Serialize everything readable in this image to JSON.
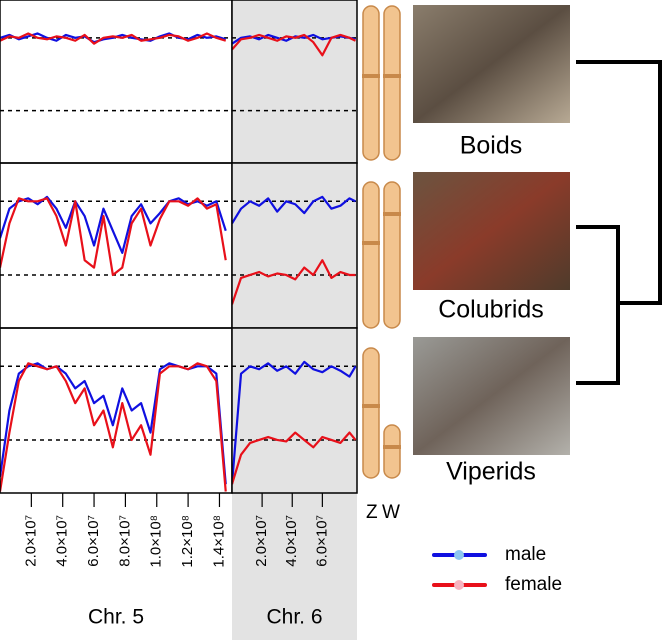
{
  "chart_data": [
    {
      "type": "line",
      "x": [
        0,
        6000000,
        12000000,
        18000000,
        24000000,
        30000000,
        36000000,
        42000000,
        48000000,
        54000000,
        60000000,
        66000000,
        72000000,
        78000000,
        84000000,
        90000000,
        96000000,
        102000000,
        108000000,
        114000000,
        120000000,
        126000000,
        132000000,
        138000000,
        144000000
      ],
      "xlim": [
        0,
        148000000
      ],
      "ylim": [
        0.14,
        1.26
      ],
      "hlines": [
        0.5,
        1
      ],
      "series": [
        {
          "name": "male",
          "color": "#1010e0",
          "point_color": "#8ec8f0",
          "values": [
            1.0,
            1.02,
            0.99,
            1.01,
            1.03,
            1.0,
            0.98,
            1.02,
            1.0,
            1.01,
            0.97,
            0.99,
            1.0,
            1.02,
            1.0,
            0.99,
            0.98,
            1.01,
            1.03,
            1.0,
            0.99,
            1.02,
            1.0,
            1.01,
            0.99
          ]
        },
        {
          "name": "female",
          "color": "#e8101a",
          "point_color": "#f7b3c0",
          "values": [
            0.98,
            1.01,
            1.0,
            1.03,
            1.0,
            0.99,
            1.01,
            1.0,
            0.98,
            1.02,
            0.96,
            1.0,
            1.01,
            1.0,
            1.02,
            0.98,
            0.99,
            1.0,
            1.02,
            1.01,
            0.98,
            1.0,
            1.03,
            1.0,
            0.98
          ]
        }
      ]
    },
    {
      "type": "line",
      "x": [
        0,
        6000000,
        12000000,
        18000000,
        24000000,
        30000000,
        36000000,
        42000000,
        48000000,
        54000000,
        60000000,
        66000000,
        72000000,
        78000000,
        82000000
      ],
      "xlim": [
        0,
        83000000
      ],
      "ylim": [
        0.14,
        1.26
      ],
      "hlines": [
        0.5,
        1
      ],
      "background": "#e3e3e3",
      "series": [
        {
          "name": "male",
          "color": "#1010e0",
          "values": [
            0.96,
            1.0,
            1.01,
            0.99,
            1.02,
            1.0,
            0.98,
            1.01,
            1.0,
            1.02,
            0.99,
            1.0,
            1.01,
            1.0,
            0.99
          ]
        },
        {
          "name": "female",
          "color": "#e8101a",
          "values": [
            0.92,
            0.99,
            1.0,
            1.02,
            1.0,
            0.98,
            1.01,
            1.0,
            1.02,
            0.97,
            0.88,
            1.0,
            1.02,
            1.0,
            0.98
          ]
        }
      ]
    },
    {
      "type": "line",
      "x": [
        0,
        6000000,
        12000000,
        18000000,
        24000000,
        30000000,
        36000000,
        42000000,
        48000000,
        54000000,
        60000000,
        66000000,
        72000000,
        78000000,
        84000000,
        90000000,
        96000000,
        102000000,
        108000000,
        114000000,
        120000000,
        126000000,
        132000000,
        138000000,
        144000000
      ],
      "xlim": [
        0,
        148000000
      ],
      "ylim": [
        0.14,
        1.26
      ],
      "hlines": [
        0.5,
        1
      ],
      "series": [
        {
          "name": "male",
          "color": "#1010e0",
          "values": [
            0.75,
            0.95,
            1.0,
            1.02,
            0.98,
            1.03,
            0.95,
            0.82,
            1.0,
            0.9,
            0.7,
            0.95,
            0.8,
            0.65,
            0.9,
            0.98,
            0.85,
            0.92,
            1.0,
            1.02,
            0.98,
            1.0,
            0.97,
            1.0,
            0.8
          ]
        },
        {
          "name": "female",
          "color": "#e8101a",
          "values": [
            0.55,
            0.85,
            1.02,
            1.0,
            1.0,
            1.02,
            0.9,
            0.7,
            1.0,
            0.6,
            0.55,
            0.9,
            0.5,
            0.55,
            0.85,
            0.95,
            0.7,
            0.88,
            1.0,
            1.0,
            0.97,
            1.02,
            0.95,
            0.98,
            0.6
          ]
        }
      ]
    },
    {
      "type": "line",
      "x": [
        0,
        6000000,
        12000000,
        18000000,
        24000000,
        30000000,
        36000000,
        42000000,
        48000000,
        54000000,
        60000000,
        66000000,
        72000000,
        78000000,
        82000000
      ],
      "xlim": [
        0,
        83000000
      ],
      "ylim": [
        0.14,
        1.26
      ],
      "hlines": [
        0.5,
        1
      ],
      "background": "#e3e3e3",
      "series": [
        {
          "name": "male",
          "color": "#1010e0",
          "values": [
            0.85,
            0.95,
            1.0,
            0.97,
            1.02,
            0.93,
            1.0,
            0.98,
            0.92,
            1.0,
            1.03,
            0.95,
            0.97,
            1.02,
            1.0
          ]
        },
        {
          "name": "female",
          "color": "#e8101a",
          "values": [
            0.3,
            0.48,
            0.5,
            0.52,
            0.49,
            0.51,
            0.5,
            0.47,
            0.55,
            0.5,
            0.6,
            0.48,
            0.52,
            0.5,
            0.5
          ]
        }
      ]
    },
    {
      "type": "line",
      "x": [
        0,
        6000000,
        12000000,
        18000000,
        24000000,
        30000000,
        36000000,
        42000000,
        48000000,
        54000000,
        60000000,
        66000000,
        72000000,
        78000000,
        84000000,
        90000000,
        96000000,
        102000000,
        108000000,
        114000000,
        120000000,
        126000000,
        132000000,
        138000000,
        144000000
      ],
      "xlim": [
        0,
        148000000
      ],
      "ylim": [
        0.14,
        1.26
      ],
      "hlines": [
        0.5,
        1
      ],
      "xlabel": "Chr. 5",
      "xticks": [
        {
          "value": 20000000,
          "label": "2.0×10⁷"
        },
        {
          "value": 40000000,
          "label": "4.0×10⁷"
        },
        {
          "value": 60000000,
          "label": "6.0×10⁷"
        },
        {
          "value": 80000000,
          "label": "8.0×10⁷"
        },
        {
          "value": 100000000,
          "label": "1.0×10⁸"
        },
        {
          "value": 120000000,
          "label": "1.2×10⁸"
        },
        {
          "value": 140000000,
          "label": "1.4×10⁸"
        }
      ],
      "series": [
        {
          "name": "male",
          "color": "#1010e0",
          "values": [
            0.25,
            0.7,
            0.95,
            1.0,
            1.02,
            0.98,
            1.0,
            0.95,
            0.85,
            0.9,
            0.75,
            0.8,
            0.6,
            0.85,
            0.7,
            0.75,
            0.55,
            0.98,
            1.02,
            1.0,
            0.98,
            1.0,
            1.0,
            0.95,
            0.2
          ]
        },
        {
          "name": "female",
          "color": "#e8101a",
          "values": [
            0.15,
            0.55,
            0.9,
            1.02,
            1.0,
            0.98,
            1.0,
            0.9,
            0.75,
            0.85,
            0.6,
            0.7,
            0.45,
            0.75,
            0.5,
            0.6,
            0.4,
            0.95,
            1.0,
            1.0,
            0.98,
            1.02,
            1.0,
            0.9,
            0.15
          ]
        }
      ]
    },
    {
      "type": "line",
      "x": [
        0,
        6000000,
        12000000,
        18000000,
        24000000,
        30000000,
        36000000,
        42000000,
        48000000,
        54000000,
        60000000,
        66000000,
        72000000,
        78000000,
        82000000
      ],
      "xlim": [
        0,
        83000000
      ],
      "ylim": [
        0.14,
        1.26
      ],
      "hlines": [
        0.5,
        1
      ],
      "background": "#e3e3e3",
      "xlabel": "Chr. 6",
      "xticks": [
        {
          "value": 20000000,
          "label": "2.0×10⁷"
        },
        {
          "value": 40000000,
          "label": "4.0×10⁷"
        },
        {
          "value": 60000000,
          "label": "6.0×10⁷"
        }
      ],
      "series": [
        {
          "name": "male",
          "color": "#1010e0",
          "values": [
            0.2,
            0.95,
            1.0,
            0.98,
            1.02,
            0.97,
            1.0,
            0.95,
            1.03,
            0.98,
            0.96,
            1.0,
            0.97,
            0.93,
            1.0
          ]
        },
        {
          "name": "female",
          "color": "#e8101a",
          "values": [
            0.2,
            0.4,
            0.48,
            0.5,
            0.52,
            0.5,
            0.49,
            0.55,
            0.5,
            0.45,
            0.52,
            0.5,
            0.48,
            0.55,
            0.5
          ]
        }
      ]
    }
  ],
  "clades": [
    "Boids",
    "Colubrids",
    "Viperids"
  ],
  "chromosome_labels": [
    "Z",
    "W"
  ]
}
